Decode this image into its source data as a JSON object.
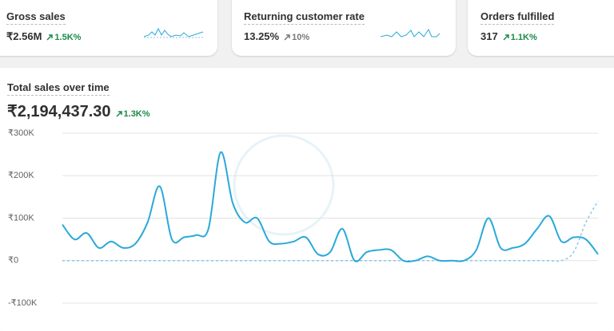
{
  "cards": [
    {
      "title": "Gross sales",
      "value": "₹2.56M",
      "change": "1.5K%",
      "trend": "up"
    },
    {
      "title": "Returning customer rate",
      "value": "13.25%",
      "change": "10%",
      "trend": "neutral"
    },
    {
      "title": "Orders fulfilled",
      "value": "317",
      "change": "1.1K%",
      "trend": "up"
    }
  ],
  "chart_data": {
    "type": "line",
    "title": "Total sales over time",
    "total": "₹2,194,437.30",
    "change": "1.3K%",
    "ylim": [
      -100000,
      300000
    ],
    "yticks": [
      {
        "value": 300000,
        "label": "₹300K"
      },
      {
        "value": 200000,
        "label": "₹200K"
      },
      {
        "value": 100000,
        "label": "₹100K"
      },
      {
        "value": 0,
        "label": "₹0"
      },
      {
        "value": -100000,
        "label": "-₹100K"
      }
    ],
    "grid": true,
    "series": [
      {
        "color": "#2aa9d9",
        "dashed": false,
        "values": [
          85000,
          50000,
          65000,
          30000,
          45000,
          30000,
          40000,
          90000,
          175000,
          50000,
          55000,
          60000,
          75000,
          255000,
          135000,
          90000,
          100000,
          45000,
          40000,
          45000,
          55000,
          15000,
          20000,
          75000,
          0,
          20000,
          25000,
          25000,
          0,
          0,
          10000,
          0,
          0,
          0,
          25000,
          100000,
          30000,
          30000,
          40000,
          75000,
          105000,
          45000,
          55000,
          50000,
          15000
        ]
      },
      {
        "color": "#8cc6ea",
        "dashed": true,
        "values": [
          0,
          0,
          0,
          0,
          0,
          0,
          0,
          0,
          0,
          0,
          0,
          0,
          0,
          0,
          0,
          0,
          0,
          0,
          0,
          0,
          0,
          0,
          0,
          0,
          0,
          0,
          0,
          0,
          0,
          0,
          0,
          0,
          0,
          0,
          0,
          0,
          0,
          0,
          0,
          0,
          0,
          0,
          20000,
          90000,
          140000
        ]
      }
    ]
  }
}
